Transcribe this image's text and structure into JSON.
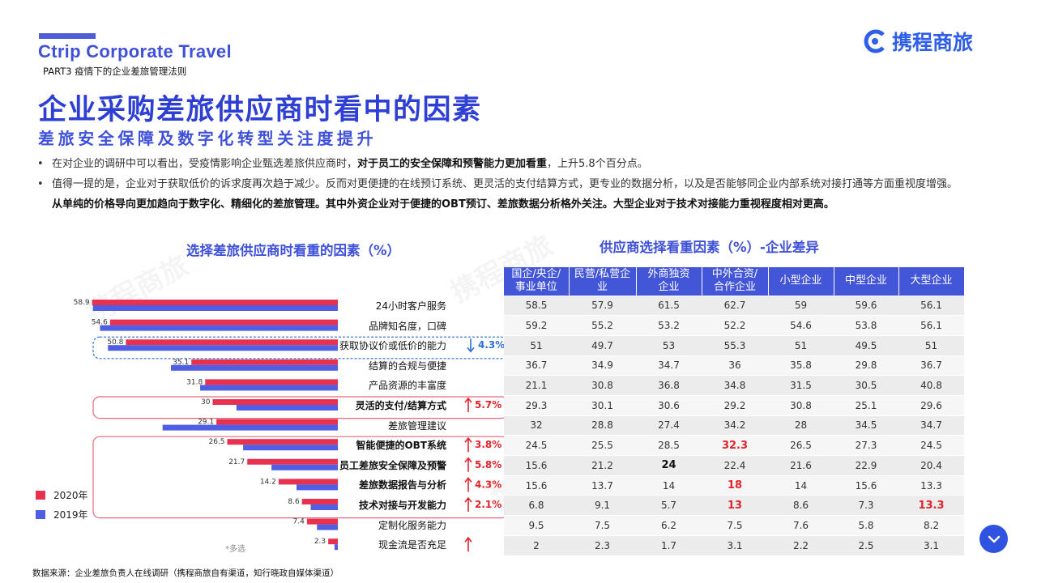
{
  "header": {
    "brand": "Ctrip Corporate Travel",
    "part": "PART3  疫情下的企业差旅管理法则",
    "logo_text": "携程商旅"
  },
  "title": "企业采购差旅供应商时看中的因素",
  "subtitle": "差旅安全保障及数字化转型关注度提升",
  "bullets": [
    {
      "pre": "在对企业的调研中可以看出，受疫情影响企业甄选差旅供应商时，",
      "bold": "对于员工的安全保障和预警能力更加看重",
      "post": "，上升5.8个百分点。"
    },
    {
      "pre": "值得一提的是，企业对于获取低价的诉求度再次趋于减少。反而对更便捷的在线预订系统、更灵活的支付结算方式，更专业的数据分析，以及是否能够同企业内部系统对接打通等方面重视度增强。",
      "bold": "从单纯的价格导向更加趋向于数字化、精细化的差旅管理。其中外资企业对于便捷的OBT预订、差旅数据分析格外关注。大型企业对于技术对接能力重视程度相对更高。",
      "post": ""
    }
  ],
  "chart_title": "选择差旅供应商时看重的因素（%）",
  "table_title": "供应商选择看重因素（%）-企业差异",
  "chart_data": {
    "type": "bar",
    "orientation": "horizontal",
    "categories": [
      "24小时客户服务",
      "品牌知名度，口碑",
      "获取协议价或低价的能力",
      "结算的合规与便捷",
      "产品资源的丰富度",
      "灵活的支付/结算方式",
      "差旅管理建议",
      "智能便捷的OBT系统",
      "员工差旅安全保障及预警",
      "差旅数据报告与分析",
      "技术对接与开发能力",
      "定制化服务能力",
      "现金流是否充足"
    ],
    "series": [
      {
        "name": "2020年",
        "color": "#e8304f",
        "values": [
          58.9,
          54.6,
          50.8,
          35.1,
          31.8,
          30,
          29.1,
          26.5,
          21.7,
          14.2,
          8.6,
          7.4,
          2.3
        ]
      },
      {
        "name": "2019年",
        "color": "#4f5ee3",
        "values": [
          null,
          null,
          null,
          null,
          null,
          null,
          null,
          null,
          null,
          null,
          null,
          null,
          null
        ]
      }
    ],
    "series_2019_approx": [
      58.7,
      57.0,
      55.1,
      40.0,
      33.0,
      24.3,
      42.0,
      22.7,
      15.9,
      9.9,
      6.5,
      5.0,
      0.8
    ],
    "changes": [
      {
        "row": 2,
        "dir": "down",
        "text": "4.3%"
      },
      {
        "row": 5,
        "dir": "up",
        "text": "5.7%"
      },
      {
        "row": 7,
        "dir": "up",
        "text": "3.8%"
      },
      {
        "row": 8,
        "dir": "up",
        "text": "5.8%"
      },
      {
        "row": 9,
        "dir": "up",
        "text": "4.3%"
      },
      {
        "row": 10,
        "dir": "up",
        "text": "2.1%"
      },
      {
        "row": 12,
        "dir": "up",
        "text": ""
      }
    ],
    "bold_rows": [
      5,
      7,
      8,
      9,
      10
    ]
  },
  "table": {
    "headers": [
      "国企/央企/\n事业单位",
      "民营/私营企\n业",
      "外商独资\n企业",
      "中外合资/\n合作企业",
      "小型企业",
      "中型企业",
      "大型企业"
    ],
    "rows": [
      [
        "58.5",
        "57.9",
        "61.5",
        "62.7",
        "59",
        "59.6",
        "56.1"
      ],
      [
        "59.2",
        "55.2",
        "53.2",
        "52.2",
        "54.6",
        "53.8",
        "56.1"
      ],
      [
        "51",
        "49.7",
        "53",
        "55.3",
        "51",
        "49.5",
        "51"
      ],
      [
        "36.7",
        "34.9",
        "34.7",
        "36",
        "35.8",
        "29.8",
        "36.7"
      ],
      [
        "21.1",
        "30.8",
        "36.8",
        "34.8",
        "31.5",
        "30.5",
        "40.8"
      ],
      [
        "29.3",
        "30.1",
        "30.6",
        "29.2",
        "30.8",
        "25.1",
        "29.6"
      ],
      [
        "32",
        "28.8",
        "27.4",
        "34.2",
        "28",
        "34.5",
        "34.7"
      ],
      [
        "24.5",
        "25.5",
        "28.5",
        "32.3",
        "26.5",
        "27.3",
        "24.5"
      ],
      [
        "15.6",
        "21.2",
        "24",
        "22.4",
        "21.6",
        "22.9",
        "20.4"
      ],
      [
        "15.6",
        "13.7",
        "14",
        "18",
        "14",
        "15.6",
        "13.3"
      ],
      [
        "6.8",
        "9.1",
        "5.7",
        "13",
        "8.6",
        "7.3",
        "13.3"
      ],
      [
        "9.5",
        "7.5",
        "6.2",
        "7.5",
        "7.6",
        "5.8",
        "8.2"
      ],
      [
        "2",
        "2.3",
        "1.7",
        "3.1",
        "2.2",
        "2.5",
        "3.1"
      ]
    ],
    "highlights": [
      {
        "r": 7,
        "c": 3,
        "color": "red"
      },
      {
        "r": 8,
        "c": 2,
        "color": "black"
      },
      {
        "r": 9,
        "c": 3,
        "color": "red"
      },
      {
        "r": 10,
        "c": 3,
        "color": "red"
      },
      {
        "r": 10,
        "c": 6,
        "color": "red"
      }
    ]
  },
  "legend": {
    "a": "2020年",
    "b": "2019年"
  },
  "note": "*多选",
  "source": "数据来源：企业差旅负责人在线调研（携程商旅自有渠道，知行晓政自媒体渠道）",
  "colors": {
    "accent": "#3f51d8",
    "red": "#e8304f",
    "blue": "#4f5ee3"
  }
}
